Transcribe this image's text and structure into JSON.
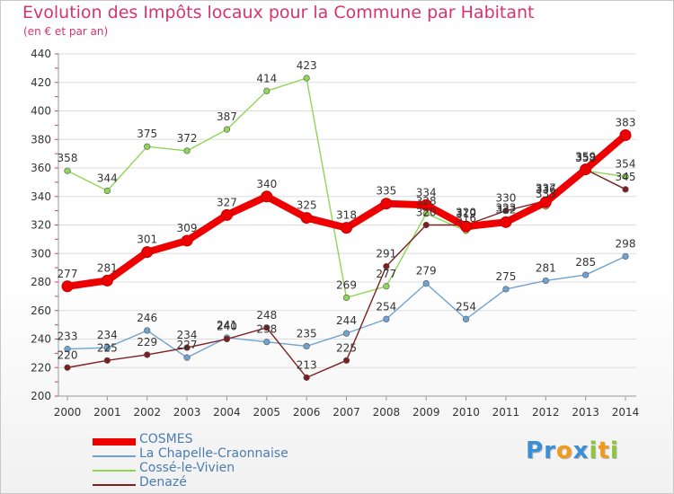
{
  "header": {
    "title": "Evolution des Impôts locaux pour la Commune par Habitant",
    "subtitle": "(en € et par an)"
  },
  "logo": {
    "text": "Proxiti",
    "letters": [
      {
        "ch": "P",
        "color": "#3a8fd6"
      },
      {
        "ch": "r",
        "color": "#3a8fd6"
      },
      {
        "ch": "o",
        "color": "#f29a1e"
      },
      {
        "ch": "x",
        "color": "#3a8fd6"
      },
      {
        "ch": "i",
        "color": "#8cc63f"
      },
      {
        "ch": "t",
        "color": "#f29a1e"
      },
      {
        "ch": "i",
        "color": "#8cc63f"
      }
    ]
  },
  "chart_data": {
    "type": "line",
    "title": "Evolution des Impôts locaux pour la Commune par Habitant",
    "subtitle": "(en € et par an)",
    "x": [
      2000,
      2001,
      2002,
      2003,
      2004,
      2005,
      2006,
      2007,
      2008,
      2009,
      2010,
      2011,
      2012,
      2013,
      2014
    ],
    "ylim": [
      200,
      440
    ],
    "yticks": [
      200,
      220,
      240,
      260,
      280,
      300,
      320,
      340,
      360,
      380,
      400,
      420,
      440
    ],
    "grid": "horizontal",
    "legend_position": "bottom-left",
    "series": [
      {
        "name": "COSMES",
        "color": "#ee0000",
        "emphasis": true,
        "values": [
          277,
          281,
          301,
          309,
          327,
          340,
          325,
          318,
          335,
          334,
          319,
          322,
          336,
          359,
          383
        ],
        "labels": [
          "277",
          "281",
          "301",
          "309",
          "327",
          "340",
          "325",
          "318",
          "335",
          "334",
          "319",
          "322",
          "336",
          "359",
          "383"
        ]
      },
      {
        "name": "La Chapelle-Craonnaise",
        "color": "#6fa3d2",
        "values": [
          233,
          234,
          246,
          227,
          241,
          238,
          235,
          244,
          254,
          279,
          254,
          275,
          281,
          285,
          298
        ],
        "labels": [
          "233",
          "234",
          "246",
          "227",
          "241",
          "238",
          "235",
          "244",
          "254",
          "279",
          "254",
          "275",
          "281",
          "285",
          "298"
        ]
      },
      {
        "name": "Cossé-le-Vivien",
        "color": "#8fd657",
        "values": [
          358,
          344,
          375,
          372,
          387,
          414,
          423,
          269,
          277,
          328,
          316,
          323,
          333,
          358,
          354
        ],
        "labels": [
          "358",
          "344",
          "375",
          "372",
          "387",
          "414",
          "423",
          "269",
          "277",
          "328",
          "316",
          "323",
          "333",
          "358",
          "354"
        ]
      },
      {
        "name": "Denazé",
        "color": "#7d1f1f",
        "values": [
          220,
          225,
          229,
          234,
          240,
          248,
          213,
          225,
          291,
          320,
          320,
          330,
          337,
          359,
          345
        ],
        "labels": [
          "220",
          "225",
          "229",
          "234",
          "240",
          "248",
          "213",
          "225",
          "291",
          "320",
          "320",
          "330",
          "337",
          "359",
          "345"
        ]
      }
    ]
  }
}
